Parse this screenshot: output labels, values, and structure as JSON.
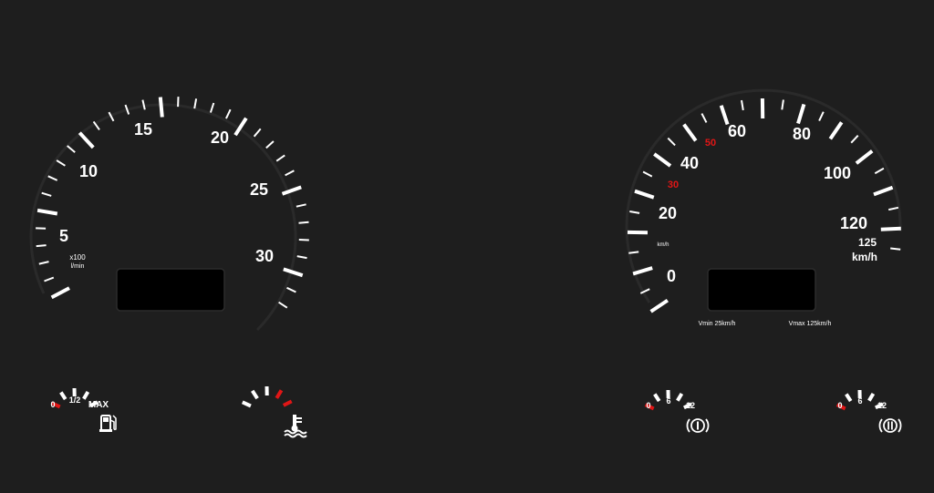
{
  "colors": {
    "background": "#1e1e1e",
    "tick": "#ffffff",
    "warning": "#e01616",
    "display": "#000000"
  },
  "tachometer": {
    "scale_labels": [
      "5",
      "10",
      "15",
      "20",
      "25",
      "30"
    ],
    "unit_line1": "x100",
    "unit_line2": "l/min"
  },
  "speedometer": {
    "scale_labels": [
      "0",
      "20",
      "40",
      "60",
      "80",
      "100",
      "120"
    ],
    "red_labels": [
      "30",
      "50"
    ],
    "extra_label": "125",
    "unit": "km/h",
    "small_unit": "km/h",
    "vmin": "Vmin 25km/h",
    "vmax": "Vmax 125km/h"
  },
  "fuel_gauge": {
    "labels": [
      "0",
      "1/2",
      "MAX"
    ],
    "icon": "fuel-pump-icon"
  },
  "temperature_gauge": {
    "icon": "coolant-temperature-icon"
  },
  "brake_gauge_1": {
    "labels": [
      "0",
      "6",
      "12"
    ],
    "icon": "brake-warning-icon"
  },
  "brake_gauge_2": {
    "labels": [
      "0",
      "6",
      "12"
    ],
    "icon": "parking-brake-icon"
  }
}
